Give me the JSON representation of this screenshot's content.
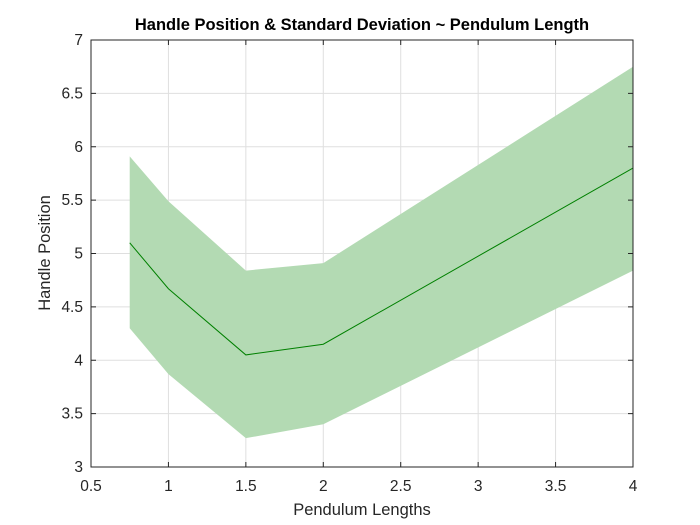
{
  "chart_data": {
    "type": "area",
    "title": "Handle Position & Standard Deviation ~ Pendulum Length",
    "xlabel": "Pendulum Lengths",
    "ylabel": "Handle Position",
    "xlim": [
      0.5,
      4
    ],
    "ylim": [
      3,
      7
    ],
    "xticks": [
      "0.5",
      "1",
      "1.5",
      "2",
      "2.5",
      "3",
      "3.5",
      "4"
    ],
    "yticks": [
      "3",
      "3.5",
      "4",
      "4.5",
      "5",
      "5.5",
      "6",
      "6.5",
      "7"
    ],
    "grid": true,
    "series": [
      {
        "x": [
          0.75,
          1,
          1.5,
          2,
          4
        ],
        "mean": [
          5.1,
          4.67,
          4.05,
          4.15,
          5.8
        ],
        "upper": [
          5.91,
          5.49,
          4.84,
          4.91,
          6.75
        ],
        "lower": [
          4.3,
          3.87,
          3.27,
          3.4,
          4.84
        ]
      }
    ],
    "colors": {
      "band": "#b3dab3",
      "line": "#008000",
      "grid": "#dfdfdf",
      "axis": "#262626"
    }
  }
}
